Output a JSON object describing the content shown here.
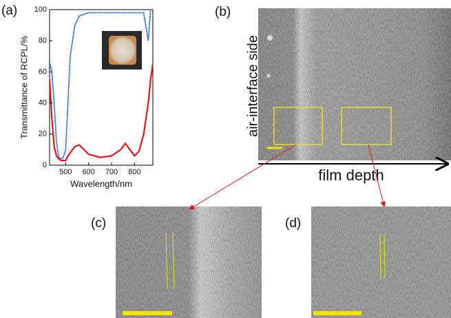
{
  "chart_data": {
    "type": "line",
    "x_label": "Wavelength/nm",
    "y_label": "Transmittance of RCPL/%",
    "x": [
      430,
      440,
      450,
      460,
      470,
      480,
      490,
      500,
      510,
      520,
      540,
      560,
      600,
      650,
      700,
      740,
      760,
      780,
      800,
      820,
      840,
      860,
      870,
      880
    ],
    "series": [
      {
        "color": "#e8141b",
        "style": "solid",
        "values": [
          55,
          30,
          12,
          6,
          4,
          3,
          3,
          3,
          6,
          8,
          12,
          13,
          7,
          5,
          6,
          10,
          14,
          10,
          6,
          9,
          20,
          40,
          55,
          65
        ]
      },
      {
        "color": "#2f6fd6",
        "style": "dotted",
        "values": [
          66,
          60,
          40,
          15,
          5,
          4,
          5,
          10,
          40,
          70,
          90,
          96,
          98,
          98,
          98,
          98,
          98,
          98,
          98,
          98,
          98,
          80,
          100,
          100
        ]
      }
    ],
    "xlim": [
      430,
      880
    ],
    "ylim": [
      0,
      100
    ],
    "xticks": [
      500,
      600,
      700,
      800
    ],
    "yticks": [
      0,
      20,
      40,
      60,
      80,
      100
    ]
  },
  "figure": {
    "panel_labels": [
      "(a)",
      "(b)",
      "(c)",
      "(d)"
    ],
    "side_label": "air-interface side",
    "depth_label": "film depth"
  }
}
